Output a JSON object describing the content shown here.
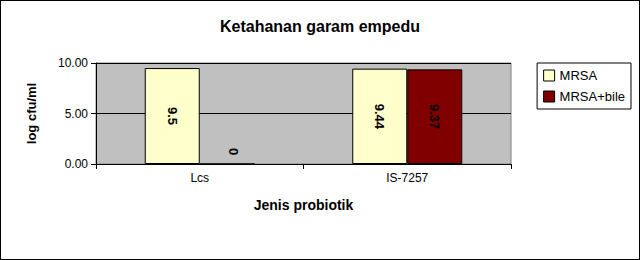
{
  "chart_data": {
    "type": "bar",
    "title": "Ketahanan garam empedu",
    "x_label": "Jenis probiotik",
    "y_label": "log cfu/ml",
    "categories": [
      "Lcs",
      "IS-7257"
    ],
    "series": [
      {
        "name": "MRSA",
        "color": "#ffffcc",
        "values": [
          9.5,
          9.44
        ]
      },
      {
        "name": "MRSA+bile",
        "color": "#800000",
        "values": [
          0,
          9.37
        ]
      }
    ],
    "ylim": [
      0,
      10
    ],
    "yticks": [
      {
        "value": 0,
        "label": "0.00"
      },
      {
        "value": 5,
        "label": "5.00"
      },
      {
        "value": 10,
        "label": "10.00"
      }
    ],
    "grid": true,
    "legend": "right",
    "data_labels": true
  }
}
